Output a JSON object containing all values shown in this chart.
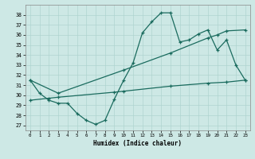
{
  "xlabel": "Humidex (Indice chaleur)",
  "xlim": [
    -0.5,
    23.5
  ],
  "ylim": [
    26.5,
    39.0
  ],
  "yticks": [
    27,
    28,
    29,
    30,
    31,
    32,
    33,
    34,
    35,
    36,
    37,
    38
  ],
  "xticks": [
    0,
    1,
    2,
    3,
    4,
    5,
    6,
    7,
    8,
    9,
    10,
    11,
    12,
    13,
    14,
    15,
    16,
    17,
    18,
    19,
    20,
    21,
    22,
    23
  ],
  "bg_color": "#cde8e5",
  "grid_color": "#afd4d0",
  "line_color": "#1a6b5e",
  "line1_x": [
    0,
    1,
    2,
    3,
    4,
    5,
    6,
    7,
    8,
    9,
    10,
    11,
    12,
    13,
    14,
    15,
    16,
    17,
    18,
    19,
    20,
    21,
    22,
    23
  ],
  "line1_y": [
    31.5,
    30.2,
    29.5,
    29.2,
    29.2,
    28.2,
    27.5,
    27.1,
    27.5,
    29.6,
    31.5,
    33.2,
    36.2,
    37.3,
    38.2,
    38.2,
    35.3,
    35.5,
    36.1,
    36.5,
    34.5,
    35.5,
    33.0,
    31.5
  ],
  "line2_x": [
    0,
    3,
    10,
    15,
    19,
    20,
    21,
    23
  ],
  "line2_y": [
    31.5,
    30.2,
    32.5,
    34.2,
    35.7,
    36.0,
    36.4,
    36.5
  ],
  "line3_x": [
    0,
    2,
    3,
    9,
    10,
    15,
    19,
    21,
    23
  ],
  "line3_y": [
    29.5,
    29.7,
    29.8,
    30.3,
    30.4,
    30.9,
    31.2,
    31.3,
    31.5
  ]
}
